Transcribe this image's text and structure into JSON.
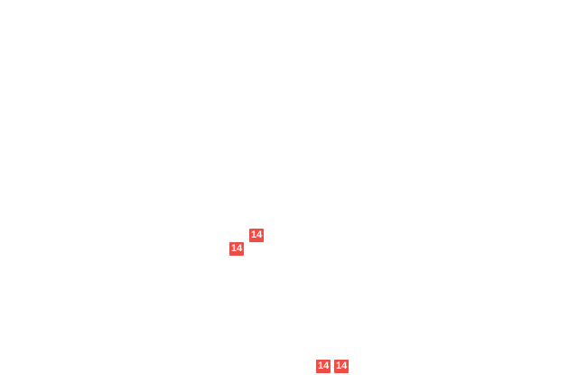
{
  "map": {
    "background_color": "#ffffff",
    "marker_color": "#ee4c44",
    "marker_text_color": "#ffffff",
    "markers": [
      {
        "label": "14"
      },
      {
        "label": "14"
      },
      {
        "label": "14"
      },
      {
        "label": "14"
      }
    ]
  }
}
